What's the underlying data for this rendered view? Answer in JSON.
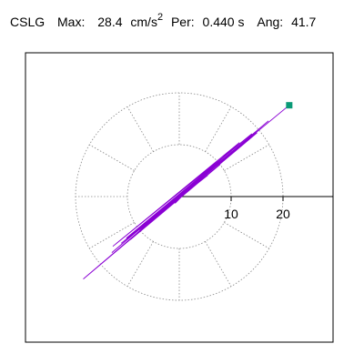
{
  "header": {
    "station": "CSLG",
    "max_label": "Max:",
    "max_value": "28.4",
    "max_unit": "cm/s",
    "max_unit_exp": "2",
    "per_label": "Per:",
    "per_value": "0.440 s",
    "ang_label": "Ang:",
    "ang_value": "41.7"
  },
  "chart_data": {
    "type": "line",
    "title": "CSLG Max: 28.4 cm/s² Per: 0.440 s Ang: 41.7",
    "xlabel": "",
    "ylabel": "",
    "radial_ticks": [
      10,
      20
    ],
    "radial_rings": [
      10,
      20
    ],
    "radial_spokes_deg": [
      0,
      30,
      60,
      90,
      120,
      150,
      180,
      210,
      240,
      270,
      300,
      330
    ],
    "grid": "dotted polar",
    "max_amplitude": 28.4,
    "max_angle_deg": 41.7,
    "colors": {
      "trace": "#8a00d4",
      "end_marker": "#0a9a77",
      "grid": "#888888",
      "axis": "#000000"
    },
    "series": [
      {
        "x": [
          0.0,
          1.2,
          -0.8,
          2.4,
          -3.1,
          4.0,
          -2.2,
          5.5,
          -6.8,
          7.9,
          -9.4,
          11.6,
          -12.8,
          14.0,
          -10.2,
          9.1,
          -7.7,
          6.2,
          -4.9,
          3.3,
          -2.1,
          1.0,
          0.5,
          -1.8,
          3.6,
          -5.2,
          6.9,
          -8.1,
          10.4,
          -13.0,
          17.2,
          -18.5,
          15.0,
          -11.2,
          8.6,
          -6.0,
          4.2,
          -2.8,
          1.6,
          -0.4,
          21.2
        ],
        "y": [
          0.0,
          0.9,
          -1.3,
          2.0,
          -2.6,
          3.7,
          -1.9,
          4.1,
          -5.6,
          6.2,
          -8.3,
          10.4,
          -9.6,
          12.1,
          -8.0,
          7.7,
          -6.4,
          5.1,
          -3.9,
          2.8,
          -1.5,
          0.7,
          0.3,
          -1.2,
          2.9,
          -4.4,
          5.7,
          -7.0,
          9.2,
          -10.8,
          14.6,
          -15.9,
          12.3,
          -9.0,
          7.1,
          -4.7,
          3.2,
          -2.1,
          1.1,
          -0.2,
          17.6
        ]
      }
    ],
    "end_point": {
      "x": 21.2,
      "y": 17.6
    }
  }
}
